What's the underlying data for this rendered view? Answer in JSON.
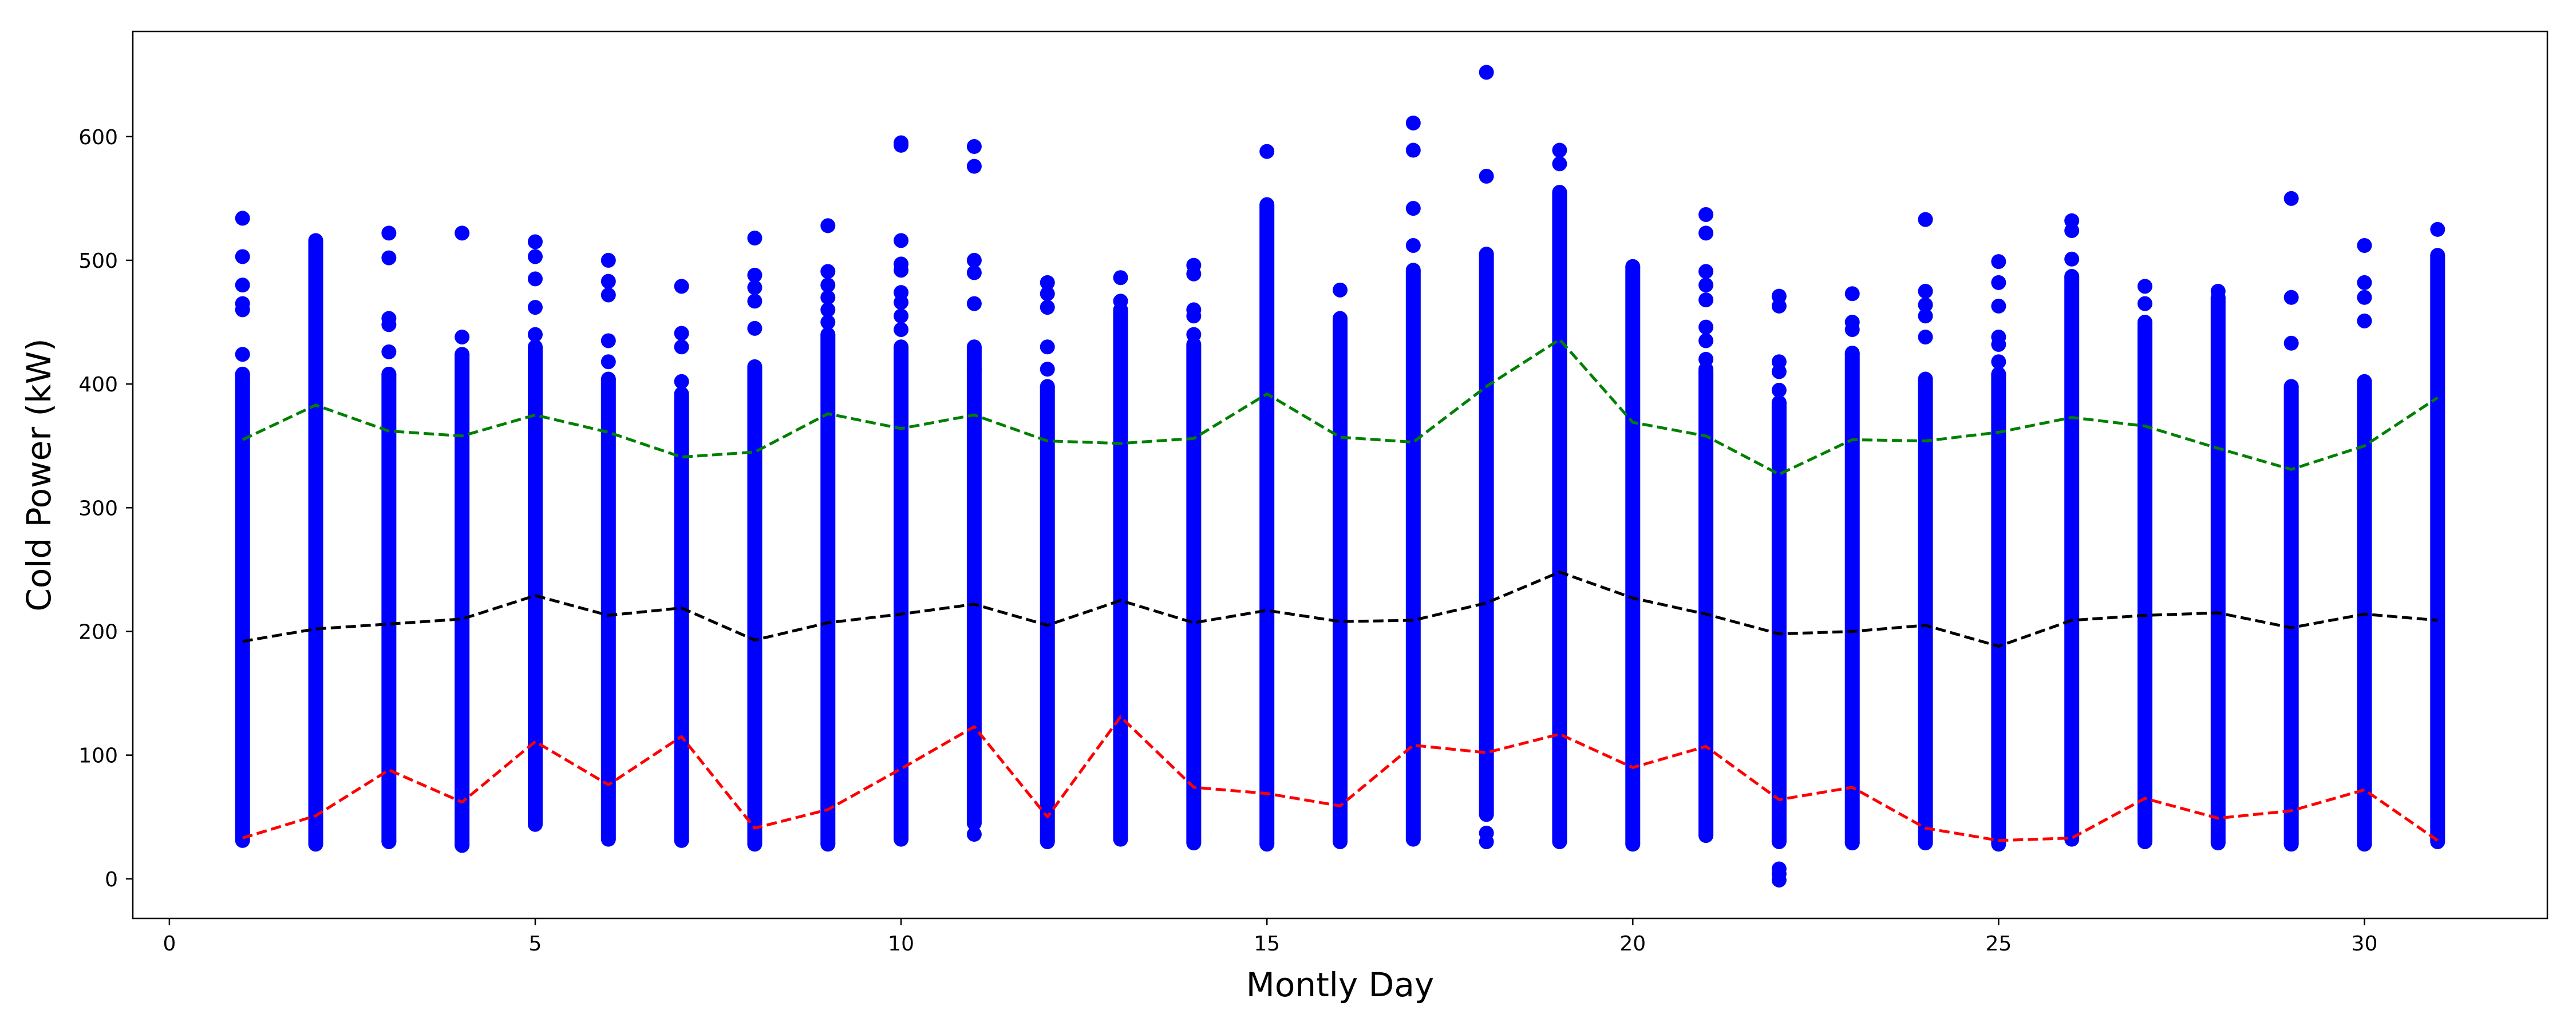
{
  "chart_data": {
    "type": "scatter",
    "title": "",
    "xlabel": "Montly Day",
    "ylabel": "Cold Power (kW)",
    "xlim": [
      -0.5,
      32.5
    ],
    "ylim": [
      -32,
      685
    ],
    "xticks": [
      0,
      5,
      10,
      15,
      20,
      25,
      30
    ],
    "yticks": [
      0,
      100,
      200,
      300,
      400,
      500,
      600
    ],
    "grid": false,
    "legend": "none",
    "scatter_color": "#0000ff",
    "scatter_columns": [
      {
        "day": 1,
        "dense": [
          31,
          408
        ],
        "outliers": [
          424,
          460,
          465,
          480,
          503,
          534
        ]
      },
      {
        "day": 2,
        "dense": [
          28,
          516
        ],
        "outliers": []
      },
      {
        "day": 3,
        "dense": [
          30,
          408
        ],
        "outliers": [
          426,
          448,
          453,
          502,
          522
        ]
      },
      {
        "day": 4,
        "dense": [
          27,
          424
        ],
        "outliers": [
          438,
          522
        ]
      },
      {
        "day": 5,
        "dense": [
          44,
          430
        ],
        "outliers": [
          440,
          462,
          485,
          503,
          515
        ]
      },
      {
        "day": 6,
        "dense": [
          32,
          404
        ],
        "outliers": [
          418,
          435,
          472,
          483,
          500
        ]
      },
      {
        "day": 7,
        "dense": [
          31,
          392
        ],
        "outliers": [
          402,
          430,
          441,
          479
        ]
      },
      {
        "day": 8,
        "dense": [
          28,
          414
        ],
        "outliers": [
          445,
          467,
          478,
          488,
          518
        ]
      },
      {
        "day": 9,
        "dense": [
          28,
          440
        ],
        "outliers": [
          450,
          460,
          470,
          480,
          491,
          528
        ]
      },
      {
        "day": 10,
        "dense": [
          32,
          430
        ],
        "outliers": [
          444,
          455,
          466,
          474,
          492,
          497,
          516,
          593,
          595
        ]
      },
      {
        "day": 11,
        "dense": [
          45,
          430
        ],
        "outliers": [
          36,
          412,
          465,
          490,
          500,
          576,
          592
        ]
      },
      {
        "day": 12,
        "dense": [
          30,
          398
        ],
        "outliers": [
          412,
          430,
          462,
          473,
          482
        ]
      },
      {
        "day": 13,
        "dense": [
          32,
          460
        ],
        "outliers": [
          467,
          486
        ]
      },
      {
        "day": 14,
        "dense": [
          29,
          432
        ],
        "outliers": [
          440,
          455,
          460,
          489,
          496
        ]
      },
      {
        "day": 15,
        "dense": [
          28,
          545
        ],
        "outliers": [
          588
        ]
      },
      {
        "day": 16,
        "dense": [
          30,
          453
        ],
        "outliers": [
          476
        ]
      },
      {
        "day": 17,
        "dense": [
          32,
          492
        ],
        "outliers": [
          512,
          542,
          589,
          611
        ]
      },
      {
        "day": 18,
        "dense": [
          52,
          505
        ],
        "outliers": [
          30,
          37,
          568,
          652
        ]
      },
      {
        "day": 19,
        "dense": [
          30,
          555
        ],
        "outliers": [
          578,
          589
        ]
      },
      {
        "day": 20,
        "dense": [
          28,
          495
        ],
        "outliers": []
      },
      {
        "day": 21,
        "dense": [
          35,
          410
        ],
        "outliers": [
          412,
          420,
          435,
          446,
          468,
          480,
          491,
          522,
          537
        ]
      },
      {
        "day": 22,
        "dense": [
          30,
          385
        ],
        "outliers": [
          -1,
          4,
          8,
          395,
          410,
          418,
          463,
          471
        ]
      },
      {
        "day": 23,
        "dense": [
          29,
          425
        ],
        "outliers": [
          444,
          450,
          473
        ]
      },
      {
        "day": 24,
        "dense": [
          29,
          404
        ],
        "outliers": [
          438,
          455,
          464,
          475,
          533
        ]
      },
      {
        "day": 25,
        "dense": [
          28,
          408
        ],
        "outliers": [
          418,
          432,
          438,
          463,
          482,
          499
        ]
      },
      {
        "day": 26,
        "dense": [
          32,
          487
        ],
        "outliers": [
          501,
          524,
          532
        ]
      },
      {
        "day": 27,
        "dense": [
          30,
          450
        ],
        "outliers": [
          465,
          479
        ]
      },
      {
        "day": 28,
        "dense": [
          29,
          470
        ],
        "outliers": [
          475
        ]
      },
      {
        "day": 29,
        "dense": [
          28,
          398
        ],
        "outliers": [
          433,
          470,
          550
        ]
      },
      {
        "day": 30,
        "dense": [
          28,
          402
        ],
        "outliers": [
          451,
          470,
          482,
          512
        ]
      },
      {
        "day": 31,
        "dense": [
          30,
          504
        ],
        "outliers": [
          525
        ]
      }
    ],
    "series": [
      {
        "style": "dashed",
        "color": "#008000",
        "x": [
          1,
          2,
          3,
          4,
          5,
          6,
          7,
          8,
          9,
          10,
          11,
          12,
          13,
          14,
          15,
          16,
          17,
          18,
          19,
          20,
          21,
          22,
          23,
          24,
          25,
          26,
          27,
          28,
          29,
          30,
          31
        ],
        "values": [
          355,
          383,
          362,
          358,
          375,
          361,
          341,
          345,
          376,
          364,
          375,
          354,
          352,
          356,
          392,
          357,
          353,
          398,
          436,
          369,
          358,
          327,
          355,
          354,
          361,
          373,
          366,
          348,
          331,
          350,
          389
        ]
      },
      {
        "style": "dashed",
        "color": "#000000",
        "x": [
          1,
          2,
          3,
          4,
          5,
          6,
          7,
          8,
          9,
          10,
          11,
          12,
          13,
          14,
          15,
          16,
          17,
          18,
          19,
          20,
          21,
          22,
          23,
          24,
          25,
          26,
          27,
          28,
          29,
          30,
          31
        ],
        "values": [
          192,
          202,
          206,
          210,
          229,
          213,
          219,
          193,
          207,
          214,
          222,
          205,
          225,
          207,
          217,
          208,
          209,
          223,
          248,
          227,
          214,
          198,
          200,
          205,
          188,
          209,
          213,
          215,
          203,
          214,
          209
        ]
      },
      {
        "style": "dashed",
        "color": "#ff0000",
        "x": [
          1,
          2,
          3,
          4,
          5,
          6,
          7,
          8,
          9,
          10,
          11,
          12,
          13,
          14,
          15,
          16,
          17,
          18,
          19,
          20,
          21,
          22,
          23,
          24,
          25,
          26,
          27,
          28,
          29,
          30,
          31
        ],
        "values": [
          33,
          51,
          88,
          62,
          111,
          76,
          115,
          41,
          56,
          89,
          123,
          50,
          131,
          74,
          69,
          59,
          108,
          102,
          117,
          90,
          107,
          64,
          74,
          41,
          31,
          33,
          65,
          49,
          55,
          72,
          31
        ]
      }
    ]
  }
}
